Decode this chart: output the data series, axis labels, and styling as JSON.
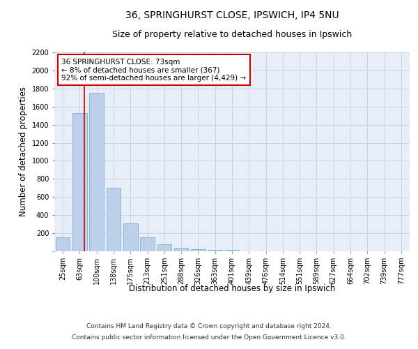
{
  "title_line1": "36, SPRINGHURST CLOSE, IPSWICH, IP4 5NU",
  "title_line2": "Size of property relative to detached houses in Ipswich",
  "xlabel": "Distribution of detached houses by size in Ipswich",
  "ylabel": "Number of detached properties",
  "categories": [
    "25sqm",
    "63sqm",
    "100sqm",
    "138sqm",
    "175sqm",
    "213sqm",
    "251sqm",
    "288sqm",
    "326sqm",
    "363sqm",
    "401sqm",
    "439sqm",
    "476sqm",
    "514sqm",
    "551sqm",
    "589sqm",
    "627sqm",
    "664sqm",
    "702sqm",
    "739sqm",
    "777sqm"
  ],
  "values": [
    155,
    1530,
    1750,
    700,
    310,
    155,
    80,
    40,
    25,
    18,
    12,
    0,
    0,
    0,
    0,
    0,
    0,
    0,
    0,
    0,
    0
  ],
  "bar_color": "#bdd0e9",
  "bar_edge_color": "#7aadd4",
  "grid_color": "#c8d4e8",
  "background_color": "#e8eef8",
  "annotation_box_text": "36 SPRINGHURST CLOSE: 73sqm\n← 8% of detached houses are smaller (367)\n92% of semi-detached houses are larger (4,429) →",
  "annotation_box_color": "#ffffff",
  "annotation_box_edge_color": "#cc0000",
  "vline_color": "#cc0000",
  "ylim": [
    0,
    2200
  ],
  "yticks": [
    0,
    200,
    400,
    600,
    800,
    1000,
    1200,
    1400,
    1600,
    1800,
    2000,
    2200
  ],
  "footer_line1": "Contains HM Land Registry data © Crown copyright and database right 2024.",
  "footer_line2": "Contains public sector information licensed under the Open Government Licence v3.0.",
  "title_fontsize": 10,
  "subtitle_fontsize": 9,
  "annotation_fontsize": 7.5,
  "tick_fontsize": 7,
  "label_fontsize": 8.5,
  "footer_fontsize": 6.5,
  "vline_xval": 1.27
}
